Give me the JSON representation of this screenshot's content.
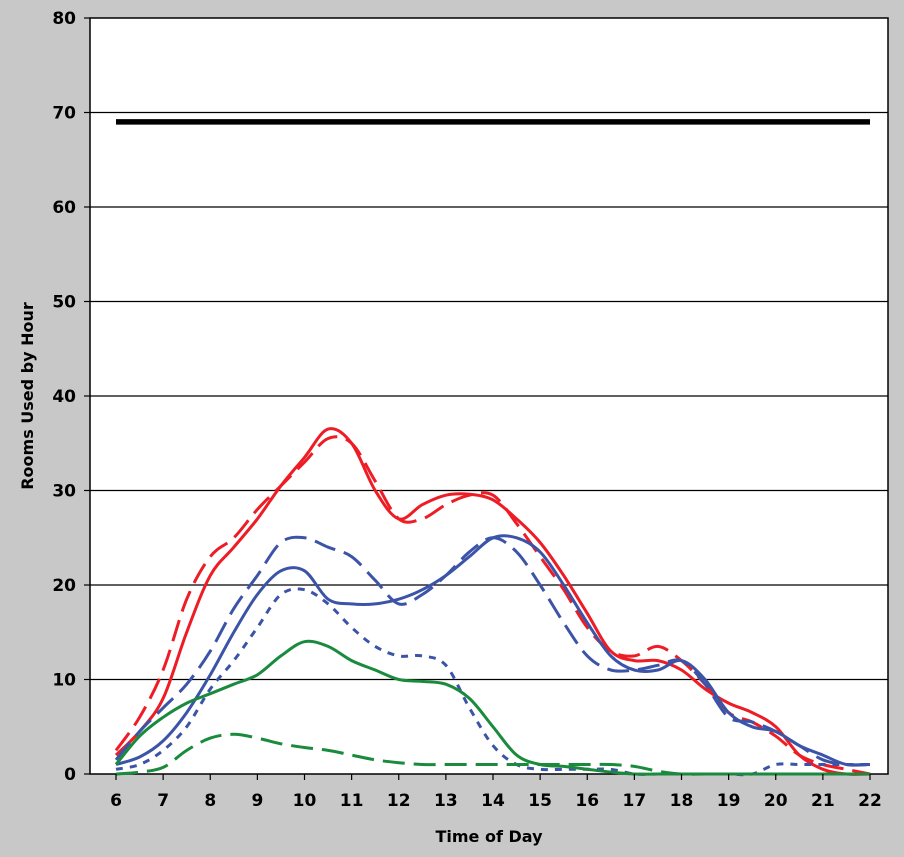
{
  "chart_data": {
    "type": "line",
    "xlabel": "Time of Day",
    "ylabel": "Rooms Used by Hour",
    "xlim": [
      6,
      22
    ],
    "ylim": [
      0,
      80
    ],
    "x_ticks": [
      6,
      7,
      8,
      9,
      10,
      11,
      12,
      13,
      14,
      15,
      16,
      17,
      18,
      19,
      20,
      21,
      22
    ],
    "x_tick_labels": [
      "6",
      "7",
      "8",
      "9",
      "10",
      "11",
      "12",
      "13",
      "14",
      "15",
      "16",
      "17",
      "18",
      "19",
      "20",
      "21",
      "22"
    ],
    "y_ticks": [
      0,
      10,
      20,
      30,
      40,
      50,
      60,
      70,
      80
    ],
    "y_tick_labels": [
      "0",
      "10",
      "20",
      "30",
      "40",
      "50",
      "60",
      "70",
      "80"
    ],
    "grid": "horizontal",
    "legend": "none",
    "series": [
      {
        "color": "#000000",
        "style": "solid",
        "width": 5.5,
        "x": [
          6,
          22
        ],
        "y": [
          69,
          69
        ]
      },
      {
        "color": "#ee1c24",
        "style": "solid",
        "width": 3,
        "x": [
          6,
          6.5,
          7,
          7.5,
          8,
          8.5,
          9,
          9.5,
          10,
          10.5,
          11,
          11.5,
          12,
          12.5,
          13,
          13.5,
          14,
          14.5,
          15,
          15.5,
          16,
          16.5,
          17,
          17.5,
          18,
          18.5,
          19,
          19.5,
          20,
          20.5,
          21,
          21.5,
          22
        ],
        "y": [
          2,
          4.5,
          8,
          15,
          21,
          24,
          27,
          30.5,
          33.5,
          36.5,
          35,
          30,
          27,
          28.5,
          29.5,
          29.6,
          29,
          27,
          24.5,
          21,
          17,
          13,
          12,
          12,
          11,
          9,
          7.5,
          6.5,
          5,
          2,
          0.5,
          0,
          0
        ]
      },
      {
        "color": "#ee1c24",
        "style": "dash",
        "width": 3,
        "x": [
          6,
          6.5,
          7,
          7.5,
          8,
          8.5,
          9,
          9.5,
          10,
          10.5,
          11,
          11.5,
          12,
          12.5,
          13,
          13.5,
          14,
          14.5,
          15,
          15.5,
          16,
          16.5,
          17,
          17.5,
          18,
          18.5,
          19,
          19.5,
          20,
          20.5,
          21,
          21.5,
          22
        ],
        "y": [
          2.5,
          6,
          11,
          18.5,
          23,
          25,
          28,
          30.5,
          33,
          35.5,
          35,
          31,
          27,
          27,
          28.5,
          29.5,
          29.5,
          26.5,
          23,
          19.5,
          15.5,
          13,
          12.5,
          13.5,
          12,
          9.5,
          6.5,
          5.5,
          4,
          2,
          1,
          0.5,
          0
        ]
      },
      {
        "color": "#3c54a8",
        "style": "solid",
        "width": 3,
        "x": [
          6,
          6.5,
          7,
          7.5,
          8,
          8.5,
          9,
          9.5,
          10,
          10.5,
          11,
          11.5,
          12,
          12.5,
          13,
          13.5,
          14,
          14.5,
          15,
          15.5,
          16,
          16.5,
          17,
          17.5,
          18,
          18.5,
          19,
          19.5,
          20,
          20.5,
          21,
          21.5,
          22
        ],
        "y": [
          1,
          1.8,
          3.5,
          6.5,
          10.5,
          15,
          19,
          21.5,
          21.5,
          18.5,
          18,
          18,
          18.5,
          19.5,
          21,
          23,
          25,
          25,
          23.5,
          20,
          16,
          12.5,
          11,
          11,
          12,
          10,
          6.5,
          5,
          4.5,
          3,
          2,
          1,
          1
        ]
      },
      {
        "color": "#3c54a8",
        "style": "dash",
        "width": 3,
        "x": [
          6,
          6.5,
          7,
          7.5,
          8,
          8.5,
          9,
          9.5,
          10,
          10.5,
          11,
          11.5,
          12,
          12.5,
          13,
          13.5,
          14,
          14.5,
          15,
          15.5,
          16,
          16.5,
          17,
          17.5,
          18,
          18.5,
          19,
          19.5,
          20,
          20.5,
          21,
          21.5,
          22
        ],
        "y": [
          1.5,
          4.5,
          7,
          9.5,
          13,
          17.5,
          21,
          24.5,
          25,
          24,
          23,
          20.5,
          18,
          19,
          21,
          23.5,
          25,
          23.5,
          20,
          16,
          12.5,
          11,
          11,
          11.5,
          12,
          9.5,
          6,
          5.5,
          4.5,
          3,
          1.5,
          1,
          1
        ]
      },
      {
        "color": "#3c54a8",
        "style": "dot",
        "width": 3,
        "x": [
          6,
          6.5,
          7,
          7.5,
          8,
          8.5,
          9,
          9.5,
          10,
          10.5,
          11,
          11.5,
          12,
          12.5,
          13,
          13.5,
          14,
          14.5,
          15,
          15.5,
          16,
          16.5,
          17,
          17.5,
          18,
          18.5,
          19,
          19.5,
          20,
          20.5,
          21,
          21.5,
          22
        ],
        "y": [
          0.5,
          1,
          2.5,
          5,
          9,
          12,
          15.5,
          19,
          19.5,
          18,
          15.5,
          13.5,
          12.5,
          12.5,
          11.5,
          7,
          3,
          1,
          0.5,
          0.5,
          0.5,
          0.5,
          0,
          0,
          0,
          0,
          0,
          0,
          1,
          1,
          1,
          1,
          1
        ]
      },
      {
        "color": "#1a8a3c",
        "style": "solid",
        "width": 3,
        "x": [
          6,
          6.5,
          7,
          7.5,
          8,
          8.5,
          9,
          9.5,
          10,
          10.5,
          11,
          11.5,
          12,
          12.5,
          13,
          13.5,
          14,
          14.5,
          15,
          15.5,
          16,
          16.5,
          17,
          17.5,
          18,
          18.5,
          19,
          19.5,
          20,
          20.5,
          21,
          21.5,
          22
        ],
        "y": [
          1,
          4,
          6,
          7.5,
          8.5,
          9.5,
          10.5,
          12.5,
          14,
          13.5,
          12,
          11,
          10,
          9.8,
          9.5,
          8,
          5,
          2,
          1,
          0.8,
          0.5,
          0.2,
          0,
          0,
          0,
          0,
          0,
          0,
          0,
          0,
          0,
          0,
          0
        ]
      },
      {
        "color": "#1a8a3c",
        "style": "dash",
        "width": 3,
        "x": [
          6,
          6.5,
          7,
          7.5,
          8,
          8.5,
          9,
          9.5,
          10,
          10.5,
          11,
          11.5,
          12,
          12.5,
          13,
          13.5,
          14,
          14.5,
          15,
          15.5,
          16,
          16.5,
          17,
          17.5,
          18,
          18.5,
          19,
          19.5,
          20,
          20.5,
          21,
          21.5,
          22
        ],
        "y": [
          0,
          0.2,
          0.7,
          2.5,
          3.8,
          4.2,
          3.8,
          3.2,
          2.8,
          2.5,
          2,
          1.5,
          1.2,
          1,
          1,
          1,
          1,
          1,
          1,
          1,
          1,
          1,
          0.8,
          0.3,
          0,
          0,
          0,
          0,
          0,
          0,
          0,
          0,
          0
        ]
      }
    ]
  }
}
